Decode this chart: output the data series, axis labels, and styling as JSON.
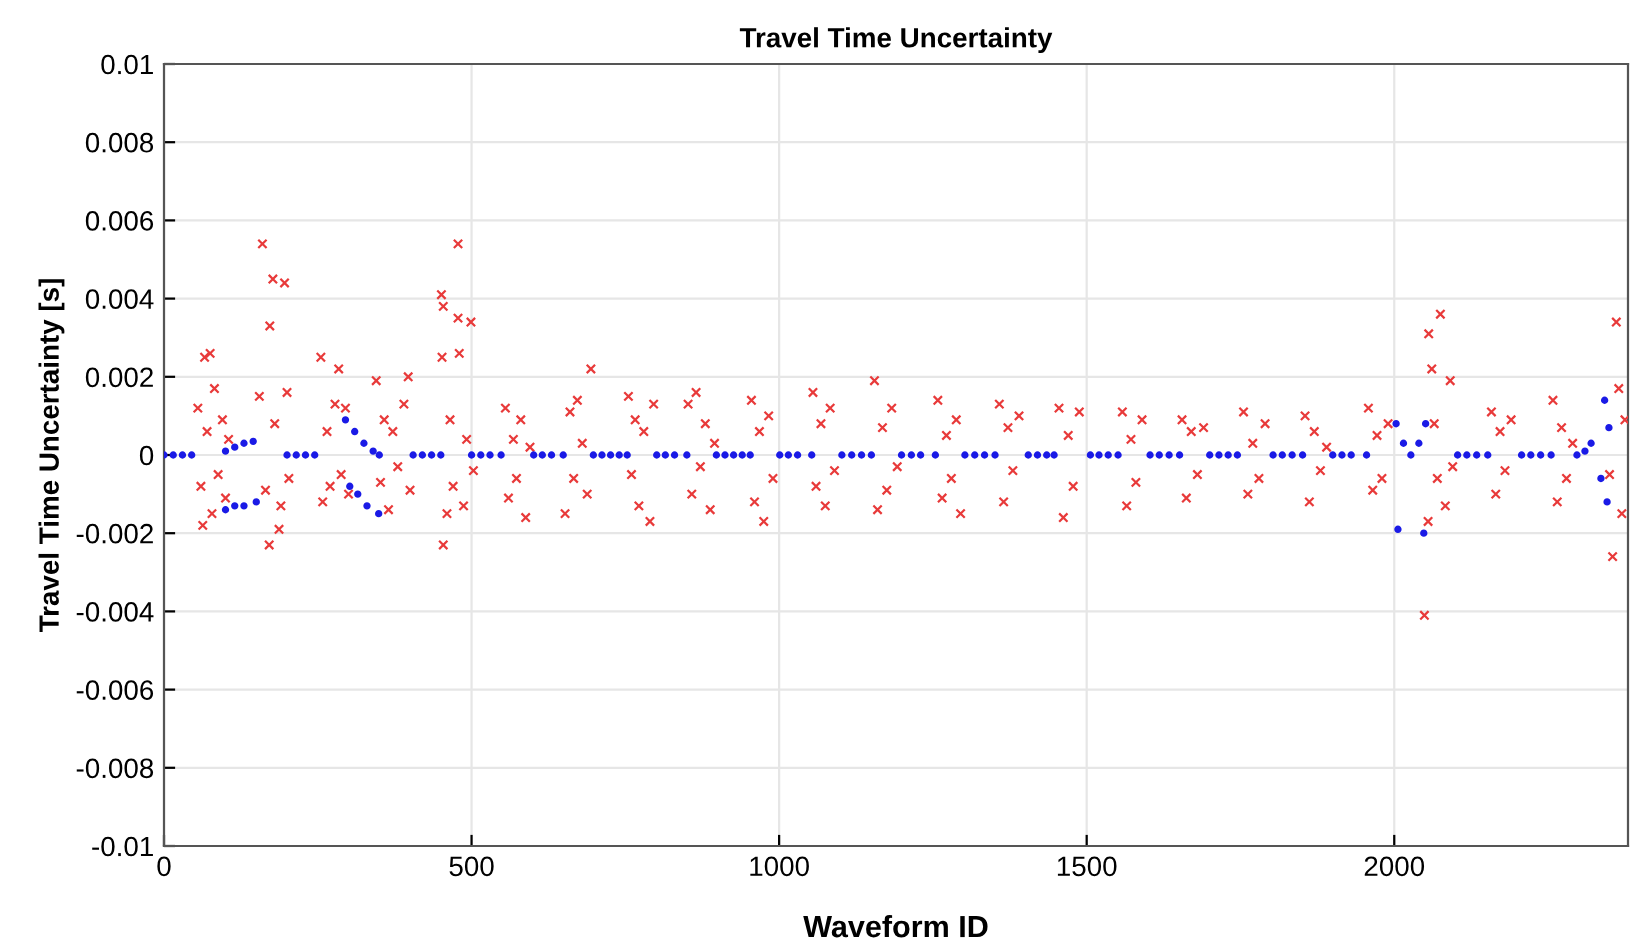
{
  "chart_data": {
    "type": "scatter",
    "title": "Travel Time Uncertainty",
    "xlabel": "Waveform ID",
    "ylabel": "Travel Time Uncertainty [s]",
    "xlim": [
      0,
      2380
    ],
    "xticks": [
      0,
      500,
      1000,
      1500,
      2000
    ],
    "ylim": [
      -0.01,
      0.01
    ],
    "yticks": [
      -0.01,
      -0.008,
      -0.006,
      -0.004,
      -0.002,
      0,
      0.002,
      0.004,
      0.006,
      0.008,
      0.01
    ],
    "grid": true,
    "series": [
      {
        "color": "#e83a3a",
        "marker": "cross",
        "x": [
          55,
          60,
          63,
          66,
          70,
          75,
          78,
          82,
          88,
          95,
          100,
          105,
          155,
          160,
          165,
          171,
          172,
          177,
          180,
          187,
          190,
          196,
          200,
          203,
          255,
          258,
          265,
          270,
          278,
          284,
          288,
          295,
          300,
          345,
          352,
          358,
          365,
          372,
          380,
          390,
          397,
          400,
          451,
          452,
          454,
          454,
          460,
          465,
          470,
          478,
          478,
          480,
          487,
          492,
          499,
          503,
          555,
          560,
          568,
          573,
          580,
          588,
          595,
          652,
          660,
          666,
          672,
          680,
          688,
          694,
          755,
          760,
          766,
          772,
          780,
          790,
          796,
          852,
          858,
          865,
          872,
          880,
          888,
          895,
          955,
          960,
          968,
          975,
          983,
          990,
          1055,
          1060,
          1068,
          1075,
          1083,
          1090,
          1155,
          1160,
          1168,
          1175,
          1183,
          1192,
          1258,
          1265,
          1272,
          1280,
          1288,
          1295,
          1358,
          1365,
          1372,
          1380,
          1390,
          1455,
          1462,
          1470,
          1478,
          1488,
          1558,
          1565,
          1572,
          1580,
          1590,
          1655,
          1662,
          1670,
          1680,
          1690,
          1755,
          1762,
          1770,
          1780,
          1790,
          1855,
          1862,
          1870,
          1880,
          1890,
          1958,
          1965,
          1972,
          1980,
          1990,
          2049,
          2055,
          2056,
          2061,
          2065,
          2070,
          2075,
          2083,
          2091,
          2095,
          2158,
          2165,
          2172,
          2180,
          2190,
          2258,
          2265,
          2272,
          2280,
          2290,
          2350,
          2355,
          2361,
          2365,
          2370,
          2375
        ],
        "values": [
          0.0012,
          -0.0008,
          -0.0018,
          0.0025,
          0.0006,
          0.0026,
          -0.0015,
          0.0017,
          -0.0005,
          0.0009,
          -0.0011,
          0.0004,
          0.0015,
          0.0054,
          -0.0009,
          -0.0023,
          0.0033,
          0.0045,
          0.0008,
          -0.0019,
          -0.0013,
          0.0044,
          0.0016,
          -0.0006,
          0.0025,
          -0.0012,
          0.0006,
          -0.0008,
          0.0013,
          0.0022,
          -0.0005,
          0.0012,
          -0.001,
          0.0019,
          -0.0007,
          0.0009,
          -0.0014,
          0.0006,
          -0.0003,
          0.0013,
          0.002,
          -0.0009,
          0.0041,
          0.0025,
          0.0038,
          -0.0023,
          -0.0015,
          0.0009,
          -0.0008,
          0.0054,
          0.0035,
          0.0026,
          -0.0013,
          0.0004,
          0.0034,
          -0.0004,
          0.0012,
          -0.0011,
          0.0004,
          -0.0006,
          0.0009,
          -0.0016,
          0.0002,
          -0.0015,
          0.0011,
          -0.0006,
          0.0014,
          0.0003,
          -0.001,
          0.0022,
          0.0015,
          -0.0005,
          0.0009,
          -0.0013,
          0.0006,
          -0.0017,
          0.0013,
          0.0013,
          -0.001,
          0.0016,
          -0.0003,
          0.0008,
          -0.0014,
          0.0003,
          0.0014,
          -0.0012,
          0.0006,
          -0.0017,
          0.001,
          -0.0006,
          0.0016,
          -0.0008,
          0.0008,
          -0.0013,
          0.0012,
          -0.0004,
          0.0019,
          -0.0014,
          0.0007,
          -0.0009,
          0.0012,
          -0.0003,
          0.0014,
          -0.0011,
          0.0005,
          -0.0006,
          0.0009,
          -0.0015,
          0.0013,
          -0.0012,
          0.0007,
          -0.0004,
          0.001,
          0.0012,
          -0.0016,
          0.0005,
          -0.0008,
          0.0011,
          0.0011,
          -0.0013,
          0.0004,
          -0.0007,
          0.0009,
          0.0009,
          -0.0011,
          0.0006,
          -0.0005,
          0.0007,
          0.0011,
          -0.001,
          0.0003,
          -0.0006,
          0.0008,
          0.001,
          -0.0012,
          0.0006,
          -0.0004,
          0.0002,
          0.0012,
          -0.0009,
          0.0005,
          -0.0006,
          0.0008,
          -0.0041,
          -0.0017,
          0.0031,
          0.0022,
          0.0008,
          -0.0006,
          0.0036,
          -0.0013,
          0.0019,
          -0.0003,
          0.0011,
          -0.001,
          0.0006,
          -0.0004,
          0.0009,
          0.0014,
          -0.0012,
          0.0007,
          -0.0006,
          0.0003,
          -0.0005,
          -0.0026,
          0.0034,
          0.0017,
          -0.0015,
          0.0009
        ]
      },
      {
        "color": "#1a1ae6",
        "marker": "circle",
        "x": [
          0,
          15,
          30,
          45,
          100,
          115,
          130,
          145,
          100,
          115,
          130,
          150,
          200,
          215,
          230,
          245,
          295,
          310,
          325,
          340,
          350,
          302,
          315,
          330,
          349,
          405,
          420,
          435,
          450,
          500,
          515,
          530,
          548,
          601,
          615,
          630,
          649,
          698,
          712,
          726,
          740,
          753,
          801,
          815,
          830,
          850,
          898,
          912,
          926,
          940,
          953,
          1001,
          1015,
          1030,
          1053,
          1102,
          1118,
          1134,
          1150,
          1199,
          1215,
          1230,
          1254,
          1302,
          1318,
          1334,
          1351,
          1405,
          1420,
          1435,
          1447,
          1506,
          1520,
          1535,
          1551,
          1603,
          1618,
          1634,
          1651,
          1700,
          1715,
          1730,
          1745,
          1803,
          1818,
          1834,
          1851,
          1900,
          1915,
          1930,
          1955,
          2003,
          2015,
          2027,
          2040,
          2051,
          2006,
          2048,
          2103,
          2118,
          2134,
          2152,
          2207,
          2222,
          2238,
          2255,
          2297,
          2310,
          2320,
          2336,
          2342,
          2349,
          2346
        ],
        "values": [
          0,
          0,
          0,
          0,
          0.0001,
          0.0002,
          0.0003,
          0.00035,
          -0.0014,
          -0.0013,
          -0.0013,
          -0.0012,
          0,
          0,
          0,
          0,
          0.0009,
          0.0006,
          0.0003,
          0.0001,
          0,
          -0.0008,
          -0.001,
          -0.0013,
          -0.0015,
          0,
          0,
          0,
          0,
          0,
          0,
          0,
          0,
          0,
          0,
          0,
          0,
          0,
          0,
          0,
          0,
          0,
          0,
          0,
          0,
          0,
          0,
          0,
          0,
          0,
          0,
          0,
          0,
          0,
          0,
          0,
          0,
          0,
          0,
          0,
          0,
          0,
          0,
          0,
          0,
          0,
          0,
          0,
          0,
          0,
          0,
          0,
          0,
          0,
          0,
          0,
          0,
          0,
          0,
          0,
          0,
          0,
          0,
          0,
          0,
          0,
          0,
          0,
          0,
          0,
          0,
          0.0008,
          0.0003,
          0,
          0.0003,
          0.0008,
          -0.0019,
          -0.002,
          0,
          0,
          0,
          0,
          0,
          0,
          0,
          0,
          0,
          0.0001,
          0.0003,
          -0.0006,
          0.0014,
          0.0007,
          -0.0012
        ]
      }
    ]
  }
}
